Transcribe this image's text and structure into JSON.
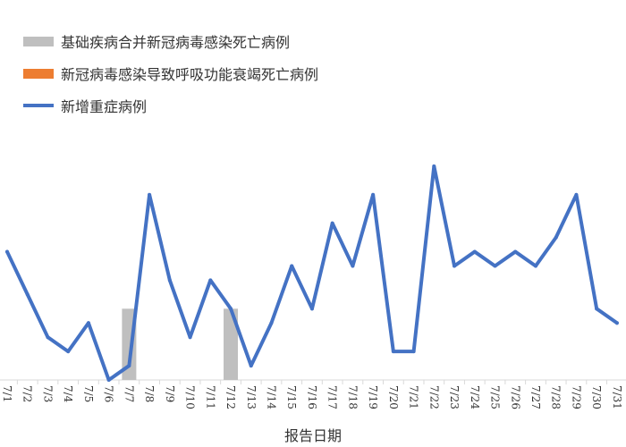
{
  "chart_data": {
    "type": "bar+line",
    "xlabel": "报告日期",
    "categories": [
      "7/1",
      "7/2",
      "7/3",
      "7/4",
      "7/5",
      "7/6",
      "7/7",
      "7/8",
      "7/9",
      "7/10",
      "7/11",
      "7/12",
      "7/13",
      "7/14",
      "7/15",
      "7/16",
      "7/17",
      "7/18",
      "7/19",
      "7/20",
      "7/21",
      "7/22",
      "7/23",
      "7/24",
      "7/25",
      "7/26",
      "7/27",
      "7/28",
      "7/29",
      "7/30",
      "7/31"
    ],
    "ylim": [
      0,
      16
    ],
    "series": [
      {
        "name": "基础疾病合并新冠病毒感染死亡病例",
        "type": "bar",
        "color": "#bfbfbf",
        "values": [
          0,
          0,
          0,
          0,
          0,
          0,
          5,
          0,
          0,
          0,
          0,
          5,
          0,
          0,
          0,
          0,
          0,
          0,
          0,
          0,
          0,
          0,
          0,
          0,
          0,
          0,
          0,
          0,
          0,
          0,
          0
        ]
      },
      {
        "name": "新冠病毒感染导致呼吸功能衰竭死亡病例",
        "type": "bar",
        "color": "#ed7d31",
        "values": [
          0,
          0,
          0,
          0,
          0,
          0,
          0,
          0,
          0,
          0,
          0,
          0,
          0,
          0,
          0,
          0,
          0,
          0,
          0,
          0,
          0,
          0,
          0,
          0,
          0,
          0,
          0,
          0,
          0,
          0,
          0
        ]
      },
      {
        "name": "新增重症病例",
        "type": "line",
        "color": "#4472c4",
        "values": [
          9,
          6,
          3,
          2,
          4,
          0,
          1,
          13,
          7,
          3,
          7,
          5,
          1,
          4,
          8,
          5,
          11,
          8,
          13,
          2,
          2,
          15,
          8,
          9,
          8,
          9,
          8,
          10,
          13,
          5,
          4
        ]
      }
    ]
  }
}
